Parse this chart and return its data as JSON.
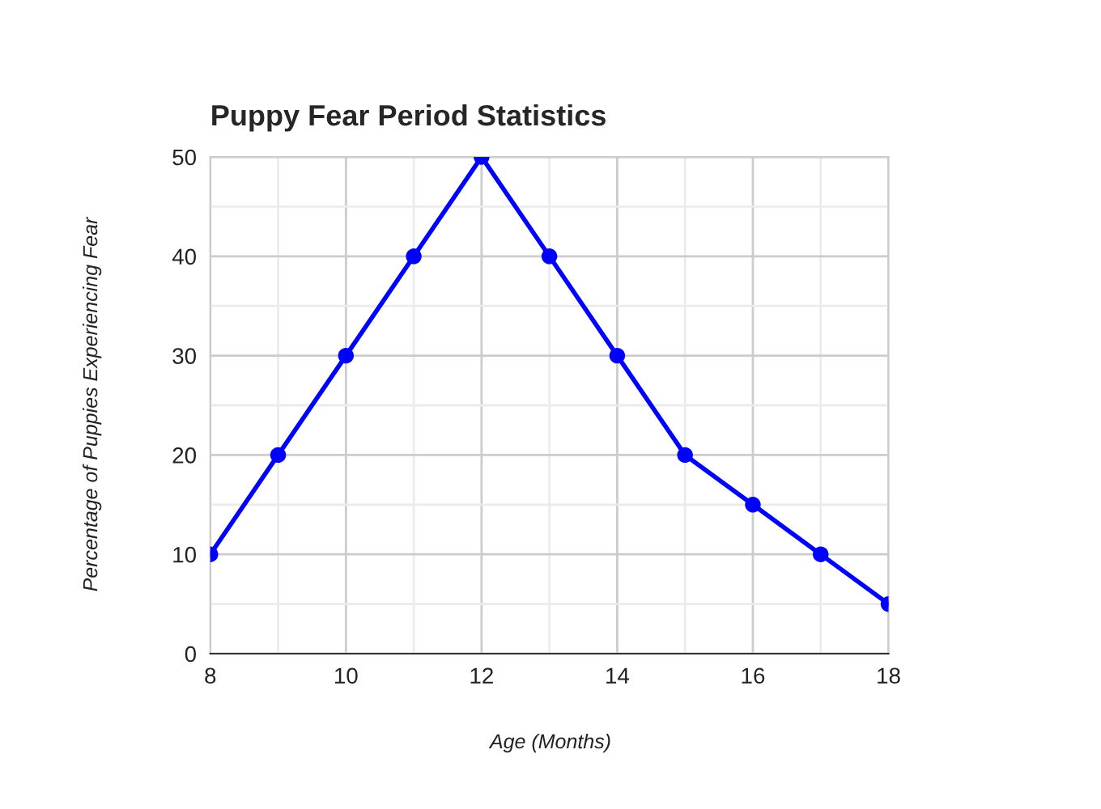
{
  "chart_data": {
    "type": "line",
    "title": "Puppy Fear Period Statistics",
    "xlabel": "Age (Months)",
    "ylabel": "Percentage of Puppies Experiencing Fear",
    "x": [
      8,
      9,
      10,
      11,
      12,
      13,
      14,
      15,
      16,
      17,
      18
    ],
    "series": [
      {
        "color": "#0000ff",
        "values": [
          10,
          20,
          30,
          40,
          50,
          40,
          30,
          20,
          15,
          10,
          5
        ]
      }
    ],
    "xlim": [
      8,
      18
    ],
    "ylim": [
      0,
      50
    ],
    "xticks": [
      8,
      {
        "value": 9,
        "label": null
      },
      10,
      {
        "value": 11,
        "label": null
      },
      12,
      {
        "value": 13,
        "label": null
      },
      14,
      {
        "value": 15,
        "label": null
      },
      16,
      {
        "value": 17,
        "label": null
      },
      18
    ],
    "yticks": [
      0,
      {
        "value": 5,
        "label": null
      },
      10,
      {
        "value": 15,
        "label": null
      },
      20,
      {
        "value": 25,
        "label": null
      },
      30,
      {
        "value": 35,
        "label": null
      },
      40,
      {
        "value": 45,
        "label": null
      },
      50
    ],
    "grid": true,
    "marker": "circle",
    "line_style": "solid",
    "legend": false
  }
}
